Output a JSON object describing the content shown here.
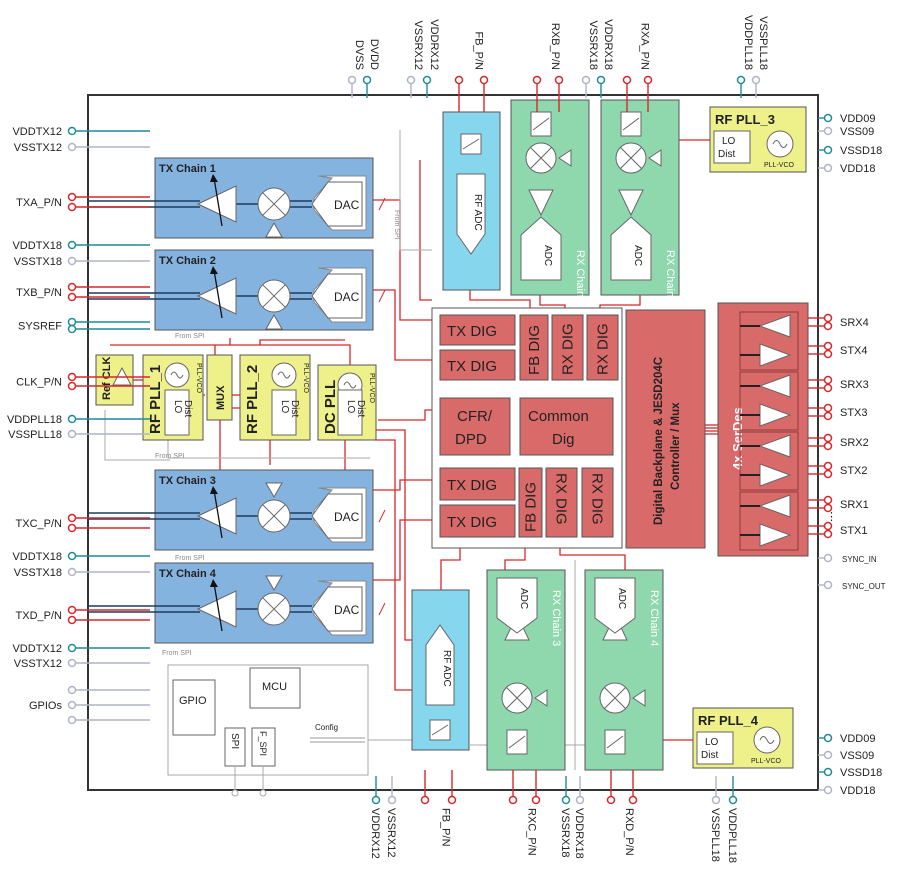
{
  "colors": {
    "signal": "#d9262b",
    "power": "#1f8c96",
    "ground": "#b0b4c8",
    "tx": "#85b3e0",
    "rx": "#8fd8ae",
    "adc": "#86d6ee",
    "pll": "#eef08a",
    "digital": "#d96a6a",
    "chip_border": "#333333"
  },
  "pins": {
    "left": [
      {
        "label": "VDDTX12",
        "type": "power"
      },
      {
        "label": "VSSTX12",
        "type": "ground"
      },
      {
        "label": "TXA_P/N",
        "type": "signal"
      },
      {
        "label": "VDDTX18",
        "type": "power"
      },
      {
        "label": "VSSTX18",
        "type": "ground"
      },
      {
        "label": "TXB_P/N",
        "type": "signal"
      },
      {
        "label": "SYSREF",
        "type": "power"
      },
      {
        "label": "CLK_P/N",
        "type": "signal"
      },
      {
        "label": "VDDPLL18",
        "type": "power"
      },
      {
        "label": "VSSPLL18",
        "type": "ground"
      },
      {
        "label": "TXC_P/N",
        "type": "signal"
      },
      {
        "label": "VDDTX18",
        "type": "power"
      },
      {
        "label": "VSSTX18",
        "type": "ground"
      },
      {
        "label": "TXD_P/N",
        "type": "signal"
      },
      {
        "label": "VDDTX12",
        "type": "power"
      },
      {
        "label": "VSSTX12",
        "type": "ground"
      },
      {
        "label": "GPIOs",
        "type": "ground"
      }
    ],
    "right": [
      {
        "label": "VDD09",
        "type": "power"
      },
      {
        "label": "VSS09",
        "type": "ground"
      },
      {
        "label": "VSSD18",
        "type": "power"
      },
      {
        "label": "VDD18",
        "type": "ground"
      },
      {
        "label": "SRX4",
        "type": "signal"
      },
      {
        "label": "STX4",
        "type": "signal"
      },
      {
        "label": "SRX3",
        "type": "signal"
      },
      {
        "label": "STX3",
        "type": "signal"
      },
      {
        "label": "SRX2",
        "type": "signal"
      },
      {
        "label": "STX2",
        "type": "signal"
      },
      {
        "label": "SRX1",
        "type": "signal"
      },
      {
        "label": "STX1",
        "type": "signal"
      },
      {
        "label": "SYNC_IN",
        "type": "ground"
      },
      {
        "label": "SYNC_OUT",
        "type": "ground"
      },
      {
        "label": "VDD09",
        "type": "power"
      },
      {
        "label": "VSS09",
        "type": "ground"
      },
      {
        "label": "VSSD18",
        "type": "power"
      },
      {
        "label": "VDD18",
        "type": "ground"
      }
    ],
    "top": [
      {
        "label": "DVSS",
        "type": "ground"
      },
      {
        "label": "DVDD",
        "type": "power"
      },
      {
        "label": "VSSRX12",
        "type": "ground"
      },
      {
        "label": "VDDRX12",
        "type": "power"
      },
      {
        "label": "FB_P/N",
        "type": "signal"
      },
      {
        "label": "RXB_P/N",
        "type": "signal"
      },
      {
        "label": "VSSRX18",
        "type": "ground"
      },
      {
        "label": "VDDRX18",
        "type": "power"
      },
      {
        "label": "RXA_P/N",
        "type": "signal"
      },
      {
        "label": "VDDPLL18",
        "type": "power"
      },
      {
        "label": "VSSPLL18",
        "type": "ground"
      }
    ],
    "bottom": [
      {
        "label": "VDDRX12",
        "type": "power"
      },
      {
        "label": "VSSRX12",
        "type": "ground"
      },
      {
        "label": "FB_P/N",
        "type": "signal"
      },
      {
        "label": "RXC_P/N",
        "type": "signal"
      },
      {
        "label": "VSSRX18",
        "type": "power"
      },
      {
        "label": "VDDRX18",
        "type": "ground"
      },
      {
        "label": "RXD_P/N",
        "type": "signal"
      },
      {
        "label": "VSSPLL18",
        "type": "ground"
      },
      {
        "label": "VDDPLL18",
        "type": "power"
      }
    ]
  },
  "tx_chains": [
    {
      "title": "TX Chain 1",
      "dac": "DAC"
    },
    {
      "title": "TX Chain 2",
      "dac": "DAC"
    },
    {
      "title": "TX Chain 3",
      "dac": "DAC"
    },
    {
      "title": "TX Chain 4",
      "dac": "DAC"
    }
  ],
  "rx_chains": [
    {
      "title": "RX Chain 1",
      "adc": "ADC"
    },
    {
      "title": "RX Chain 2",
      "adc": "ADC"
    },
    {
      "title": "RX Chain 3",
      "adc": "ADC"
    },
    {
      "title": "RX Chain 4",
      "adc": "ADC"
    }
  ],
  "rf_adc": {
    "top": "RF ADC",
    "bottom": "RF ADC"
  },
  "plls": {
    "rf_pll_1": {
      "title": "RF PLL_1",
      "lo": "LO",
      "dist": "Dist",
      "vco": "PLL-VCO"
    },
    "rf_pll_2": {
      "title": "RF PLL_2",
      "lo": "LO",
      "dist": "Dist",
      "vco": "PLL-VCO"
    },
    "dc_pll": {
      "title": "DC PLL",
      "lo": "LO",
      "dist": "Dist",
      "vco": "PLL-VCO"
    },
    "rf_pll_3": {
      "title": "RF PLL_3",
      "lo": "LO",
      "dist": "Dist",
      "vco": "PLL-VCO"
    },
    "rf_pll_4": {
      "title": "RF PLL_4",
      "lo": "LO",
      "dist": "Dist",
      "vco": "PLL-VCO"
    }
  },
  "ref_clk": "Ref CLK",
  "mux": "MUX",
  "digital": {
    "tx_dig": "TX DIG",
    "fb_dig": "FB DIG",
    "rx_dig": "RX DIG",
    "cfr_1": "CFR/",
    "cfr_2": "DPD",
    "common_1": "Common",
    "common_2": "Dig",
    "backplane_1": "Digital Backplane & JESD204C",
    "backplane_2": "Controller / Mux"
  },
  "serdes": "4x SerDes",
  "mcu_box": {
    "gpio": "GPIO",
    "mcu": "MCU",
    "spi": "SPI",
    "f_spi": "F_SPI",
    "config": "Config"
  },
  "from_spi": "From SPI",
  "ellipsis": "⋮"
}
